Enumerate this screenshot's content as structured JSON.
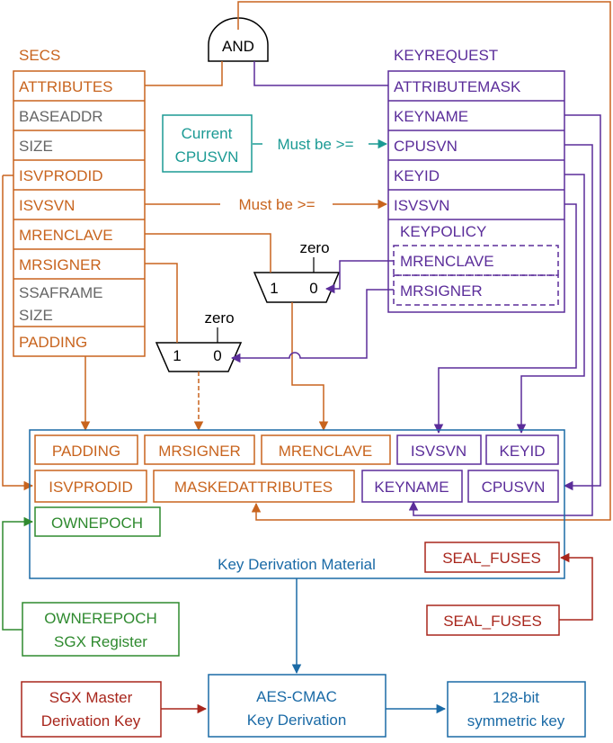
{
  "gate_and": "AND",
  "secs": {
    "title": "SECS",
    "fields": [
      "ATTRIBUTES",
      "BASEADDR",
      "SIZE",
      "ISVPRODID",
      "ISVSVN",
      "MRENCLAVE",
      "MRSIGNER",
      "SSAFRAME",
      "SIZE",
      "PADDING"
    ]
  },
  "keyrequest": {
    "title": "KEYREQUEST",
    "fields": [
      "ATTRIBUTEMASK",
      "KEYNAME",
      "CPUSVN",
      "KEYID",
      "ISVSVN"
    ],
    "keypolicy_title": "KEYPOLICY",
    "policy_fields": [
      "MRENCLAVE",
      "MRSIGNER"
    ]
  },
  "current_cpusvn": [
    "Current",
    "CPUSVN"
  ],
  "must_be_gte_1": "Must be >=",
  "must_be_gte_2": "Must be >=",
  "mux_upper": {
    "in1": "1",
    "in0": "0",
    "zero": "zero"
  },
  "mux_lower": {
    "in1": "1",
    "in0": "0",
    "zero": "zero"
  },
  "kdm": {
    "title": "Key Derivation Material",
    "row1": [
      "PADDING",
      "MRSIGNER",
      "MRENCLAVE",
      "ISVSVN",
      "KEYID"
    ],
    "row2": [
      "ISVPRODID",
      "MASKEDATTRIBUTES",
      "KEYNAME",
      "CPUSVN"
    ],
    "ownepoch": "OWNEPOCH",
    "seal_fuses": "SEAL_FUSES"
  },
  "seal_fuses_source": "SEAL_FUSES",
  "ownerepoch_register": [
    "OWNEREPOCH",
    "SGX Register"
  ],
  "master_key": [
    "SGX Master",
    "Derivation Key"
  ],
  "aes_cmac": [
    "AES-CMAC",
    "Key Derivation"
  ],
  "output_key": [
    "128-bit",
    "symmetric key"
  ],
  "colors": {
    "secs": "#c8641e",
    "keyrequest": "#5b2d9a",
    "gray_fields": "#666666",
    "owner": "#2f8a2f",
    "fuses": "#a8261c",
    "derivation": "#1a6aa6",
    "cpusvn": "#1b9a94"
  }
}
